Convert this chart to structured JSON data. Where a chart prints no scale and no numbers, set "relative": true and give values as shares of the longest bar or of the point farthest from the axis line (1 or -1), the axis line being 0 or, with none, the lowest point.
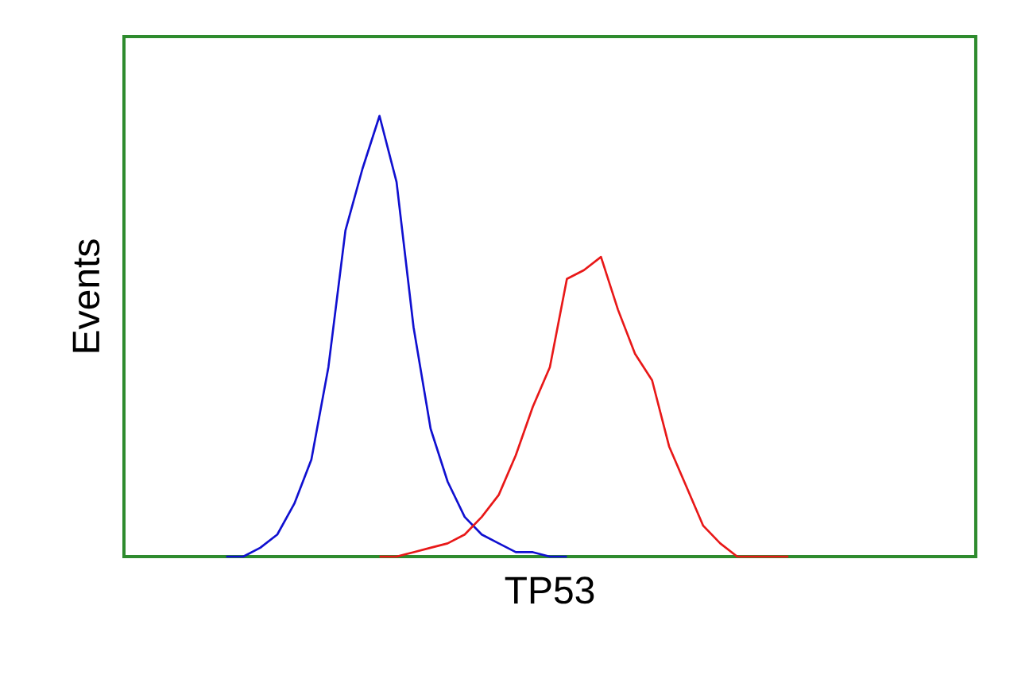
{
  "chart_data": {
    "type": "line",
    "relative": true,
    "xlabel": "TP53",
    "ylabel": "Events",
    "tick_labels": false,
    "marker": "none",
    "line_style": "solid",
    "categories": [
      null,
      null,
      null,
      null,
      null,
      null,
      null,
      null,
      null,
      null,
      null,
      null,
      null,
      null,
      null,
      null,
      null,
      null,
      null,
      null,
      null,
      null,
      null,
      null,
      null,
      null,
      null,
      null,
      null,
      null,
      null,
      null,
      null,
      null,
      null,
      null,
      null,
      null,
      null,
      null,
      null,
      null,
      null,
      null,
      null,
      null,
      null,
      null,
      null,
      null,
      null
    ],
    "series": [
      {
        "color": "#1010d0",
        "values": [
          null,
          null,
          null,
          null,
          null,
          null,
          0,
          0,
          0.02,
          0.05,
          0.12,
          0.22,
          0.43,
          0.74,
          0.88,
          1,
          0.85,
          0.52,
          0.29,
          0.17,
          0.09,
          0.05,
          0.03,
          0.01,
          0.01,
          0,
          0,
          null,
          null,
          null,
          null,
          null,
          null,
          null,
          null,
          null,
          null,
          null,
          null,
          null,
          null,
          null,
          null,
          null,
          null,
          null,
          null,
          null,
          null,
          null,
          null
        ]
      },
      {
        "color": "#e81818",
        "values": [
          null,
          null,
          null,
          null,
          null,
          null,
          null,
          null,
          null,
          null,
          null,
          null,
          null,
          null,
          null,
          0,
          0,
          0.01,
          0.02,
          0.03,
          0.05,
          0.09,
          0.14,
          0.23,
          0.34,
          0.43,
          0.63,
          0.65,
          0.68,
          0.56,
          0.46,
          0.4,
          0.25,
          0.16,
          0.07,
          0.03,
          0,
          0,
          0,
          0,
          null,
          null,
          null,
          null,
          null,
          null,
          null,
          null,
          null,
          null,
          null
        ]
      }
    ]
  }
}
